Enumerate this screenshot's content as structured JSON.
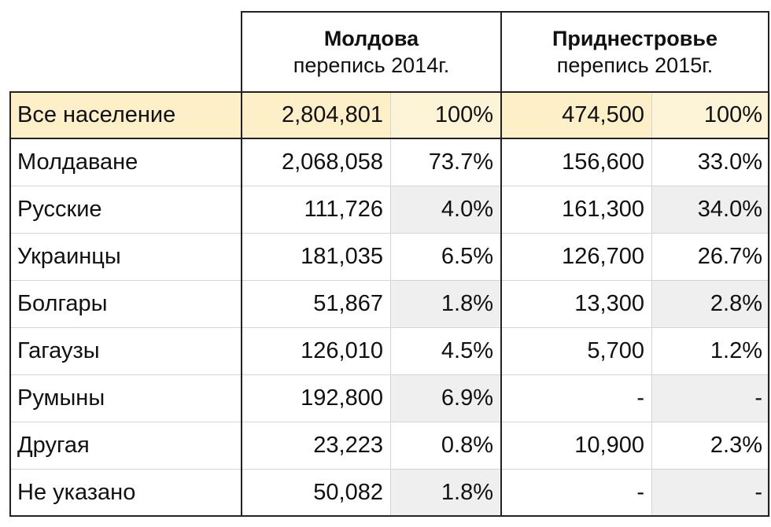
{
  "header": {
    "moldova": {
      "title": "Молдова",
      "subtitle": "перепись 2014г."
    },
    "transnistria": {
      "title": "Приднестровье",
      "subtitle": "перепись 2015г."
    }
  },
  "rows": [
    {
      "name": "Все население",
      "md_count": "2,804,801",
      "md_pct": "100%",
      "pmr_count": "474,500",
      "pmr_pct": "100%"
    },
    {
      "name": "Молдаване",
      "md_count": "2,068,058",
      "md_pct": "73.7%",
      "pmr_count": "156,600",
      "pmr_pct": "33.0%"
    },
    {
      "name": "Русские",
      "md_count": "111,726",
      "md_pct": "4.0%",
      "pmr_count": "161,300",
      "pmr_pct": "34.0%"
    },
    {
      "name": "Украинцы",
      "md_count": "181,035",
      "md_pct": "6.5%",
      "pmr_count": "126,700",
      "pmr_pct": "26.7%"
    },
    {
      "name": "Болгары",
      "md_count": "51,867",
      "md_pct": "1.8%",
      "pmr_count": "13,300",
      "pmr_pct": "2.8%"
    },
    {
      "name": "Гагаузы",
      "md_count": "126,010",
      "md_pct": "4.5%",
      "pmr_count": "5,700",
      "pmr_pct": "1.2%"
    },
    {
      "name": "Румыны",
      "md_count": "192,800",
      "md_pct": "6.9%",
      "pmr_count": "-",
      "pmr_pct": "-"
    },
    {
      "name": "Другая",
      "md_count": "23,223",
      "md_pct": "0.8%",
      "pmr_count": "10,900",
      "pmr_pct": "2.3%"
    },
    {
      "name": "Не указано",
      "md_count": "50,082",
      "md_pct": "1.8%",
      "pmr_count": "-",
      "pmr_pct": "-"
    }
  ],
  "colors": {
    "total_row": "#fdefc7",
    "stripe": "#f4f4f4",
    "border": "#222222"
  }
}
